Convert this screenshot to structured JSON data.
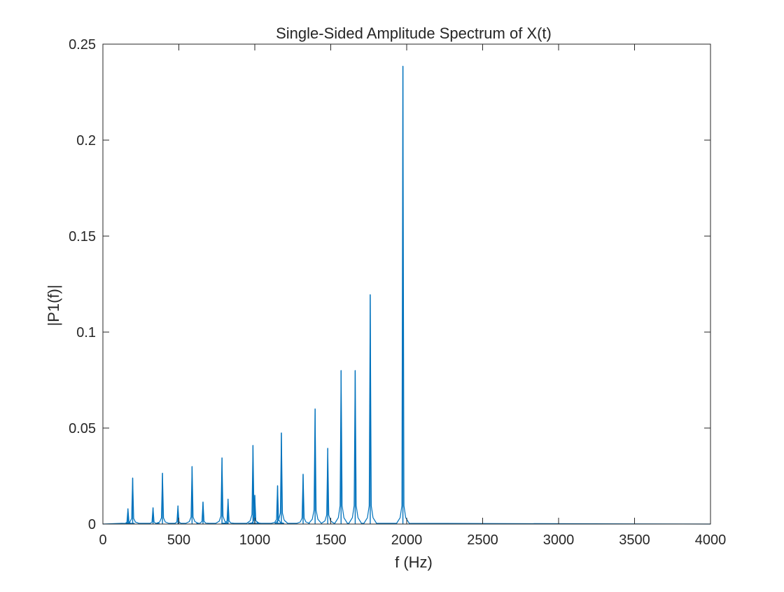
{
  "chart_data": {
    "type": "line",
    "title": "Single-Sided Amplitude Spectrum of X(t)",
    "xlabel": "f (Hz)",
    "ylabel": "|P1(f)|",
    "xlim": [
      0,
      4000
    ],
    "ylim": [
      0,
      0.25
    ],
    "x_ticks": [
      0,
      500,
      1000,
      1500,
      2000,
      2500,
      3000,
      3500,
      4000
    ],
    "x_tick_labels": [
      "0",
      "500",
      "1000",
      "1500",
      "2000",
      "2500",
      "3000",
      "3500",
      "4000"
    ],
    "y_ticks": [
      0,
      0.05,
      0.1,
      0.15,
      0.2,
      0.25
    ],
    "y_tick_labels": [
      "0",
      "0.05",
      "0.1",
      "0.15",
      "0.2",
      "0.25"
    ],
    "grid": false,
    "line_color": "#0072BD",
    "peaks": [
      {
        "f": 165,
        "amp": 0.008
      },
      {
        "f": 196,
        "amp": 0.024
      },
      {
        "f": 330,
        "amp": 0.0085
      },
      {
        "f": 392,
        "amp": 0.0265
      },
      {
        "f": 494,
        "amp": 0.0095
      },
      {
        "f": 587,
        "amp": 0.03
      },
      {
        "f": 659,
        "amp": 0.0115
      },
      {
        "f": 784,
        "amp": 0.0345
      },
      {
        "f": 824,
        "amp": 0.013
      },
      {
        "f": 988,
        "amp": 0.041
      },
      {
        "f": 1000,
        "amp": 0.015
      },
      {
        "f": 1150,
        "amp": 0.02
      },
      {
        "f": 1175,
        "amp": 0.0475
      },
      {
        "f": 1318,
        "amp": 0.026
      },
      {
        "f": 1397,
        "amp": 0.06
      },
      {
        "f": 1480,
        "amp": 0.0395
      },
      {
        "f": 1568,
        "amp": 0.08
      },
      {
        "f": 1661,
        "amp": 0.08
      },
      {
        "f": 1760,
        "amp": 0.1195
      },
      {
        "f": 1975,
        "amp": 0.2385
      }
    ]
  }
}
